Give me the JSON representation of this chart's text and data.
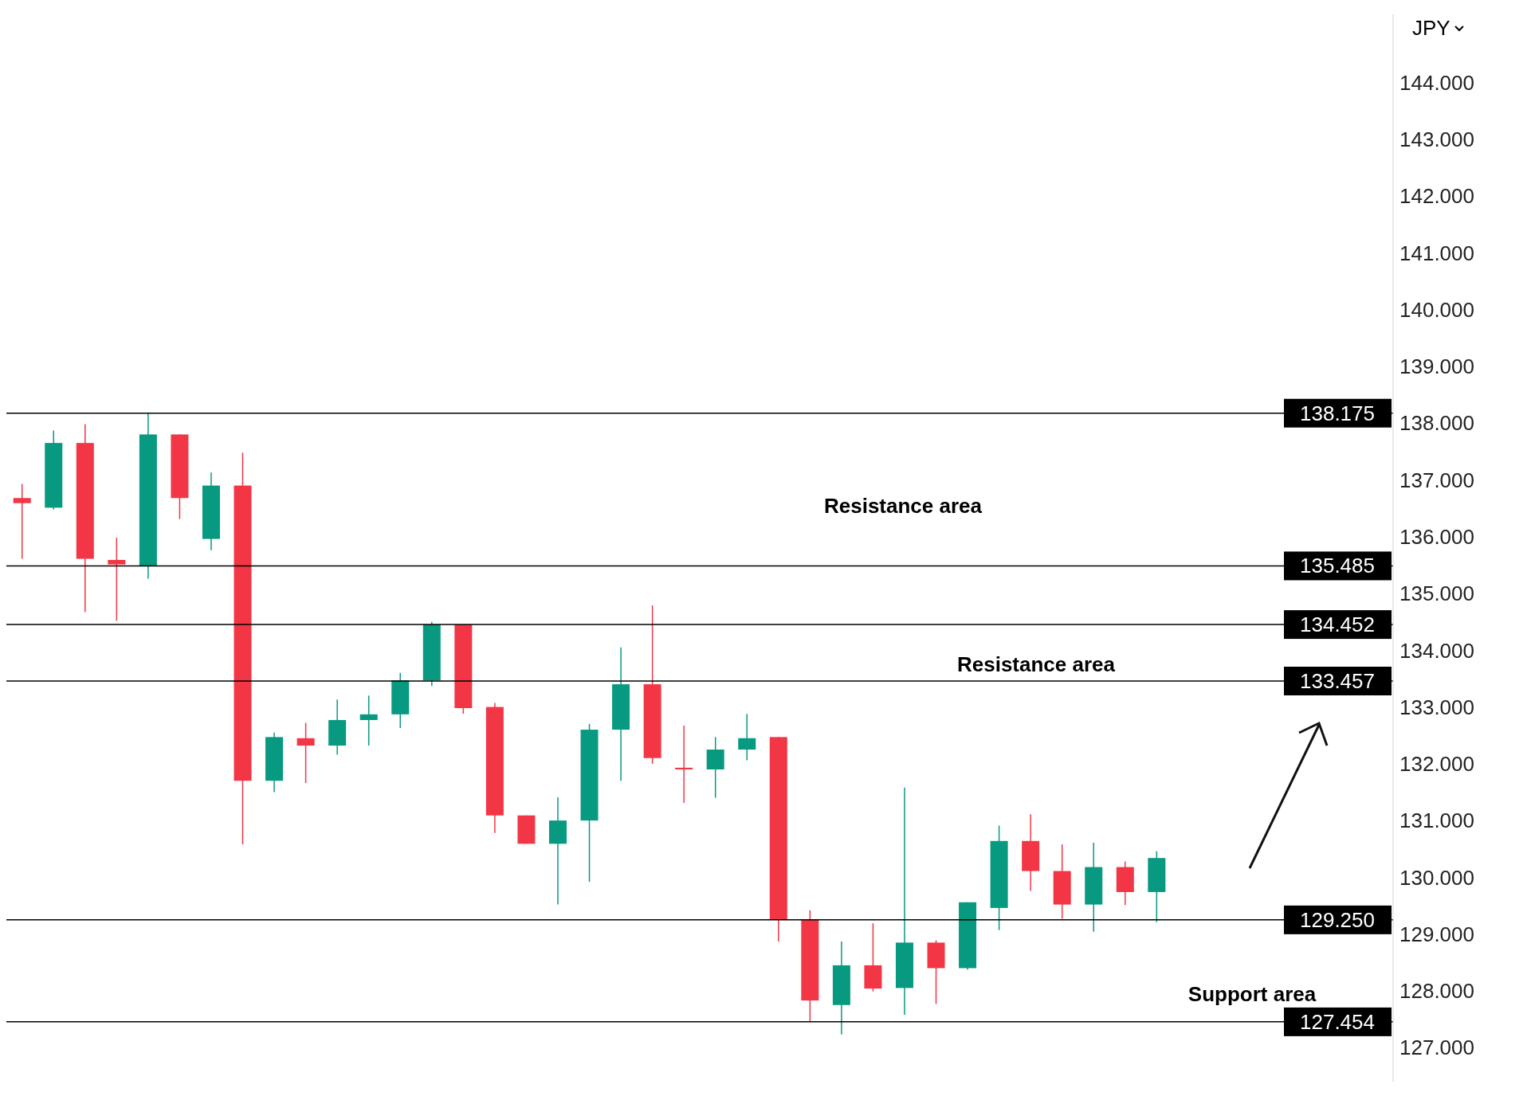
{
  "chart_data": {
    "type": "candlestick",
    "ylabel": "JPY",
    "categories": [
      null,
      null,
      null,
      null,
      null,
      null,
      null,
      null,
      null,
      null,
      null,
      null,
      null,
      null,
      null,
      null,
      null,
      null,
      null,
      null,
      null,
      null,
      null,
      null,
      null,
      null,
      null,
      null,
      null,
      null,
      null,
      null,
      null,
      null,
      null,
      null,
      null,
      null,
      null,
      null,
      null,
      null,
      null,
      null
    ],
    "ohlc": [
      [
        136.68,
        136.93,
        135.61,
        136.59
      ],
      [
        136.51,
        137.87,
        136.48,
        137.65
      ],
      [
        137.65,
        137.98,
        134.67,
        135.61
      ],
      [
        135.59,
        135.98,
        134.52,
        135.51
      ],
      [
        135.49,
        138.175,
        135.26,
        137.8
      ],
      [
        137.8,
        137.8,
        136.31,
        136.68
      ],
      [
        135.96,
        137.13,
        135.76,
        136.9
      ],
      [
        136.9,
        137.48,
        130.58,
        131.7
      ],
      [
        131.7,
        132.55,
        131.5,
        132.47
      ],
      [
        132.45,
        132.72,
        131.66,
        132.32
      ],
      [
        132.32,
        133.13,
        132.16,
        132.77
      ],
      [
        132.77,
        133.2,
        132.32,
        132.87
      ],
      [
        132.87,
        133.6,
        132.63,
        133.47
      ],
      [
        133.47,
        134.5,
        133.37,
        134.452
      ],
      [
        134.45,
        134.45,
        132.88,
        132.98
      ],
      [
        133.0,
        133.07,
        130.78,
        131.09
      ],
      [
        131.09,
        131.09,
        130.59,
        130.59
      ],
      [
        130.59,
        131.41,
        129.52,
        131.0
      ],
      [
        131.0,
        132.7,
        129.92,
        132.6
      ],
      [
        132.6,
        134.05,
        131.7,
        133.4
      ],
      [
        133.4,
        134.79,
        132.0,
        132.1
      ],
      [
        131.93,
        132.67,
        131.31,
        131.9
      ],
      [
        131.9,
        132.47,
        131.4,
        132.25
      ],
      [
        132.25,
        132.88,
        132.06,
        132.45
      ],
      [
        132.47,
        132.47,
        128.87,
        129.26
      ],
      [
        129.26,
        129.42,
        127.454,
        127.83
      ],
      [
        127.75,
        128.87,
        127.23,
        128.45
      ],
      [
        128.45,
        129.19,
        127.99,
        128.04
      ],
      [
        128.05,
        131.58,
        127.58,
        128.85
      ],
      [
        128.85,
        128.89,
        127.77,
        128.4
      ],
      [
        128.4,
        129.56,
        128.37,
        129.56
      ],
      [
        129.46,
        130.91,
        129.07,
        130.64
      ],
      [
        130.64,
        131.11,
        129.76,
        130.11
      ],
      [
        130.11,
        130.58,
        129.27,
        129.52
      ],
      [
        129.52,
        130.61,
        129.04,
        130.18
      ],
      [
        130.18,
        130.28,
        129.51,
        129.74
      ],
      [
        129.74,
        130.46,
        129.21,
        130.34
      ],
      null,
      null,
      null,
      null,
      null,
      null,
      null
    ],
    "colors": [
      "#f23645",
      "#089981",
      "#f23645",
      "#f23645",
      "#089981",
      "#f23645",
      "#089981",
      "#f23645",
      "#089981",
      "#f23645",
      "#089981",
      "#089981",
      "#089981",
      "#089981",
      "#f23645",
      "#f23645",
      "#f23645",
      "#089981",
      "#089981",
      "#089981",
      "#f23645",
      "#f23645",
      "#089981",
      "#089981",
      "#f23645",
      "#f23645",
      "#089981",
      "#f23645",
      "#089981",
      "#f23645",
      "#089981",
      "#089981",
      "#f23645",
      "#f23645",
      "#089981",
      "#f23645",
      "#089981",
      null,
      null,
      null,
      null,
      null,
      null,
      null
    ],
    "ylim": [
      126.4,
      145.2
    ],
    "yticks": [
      {
        "value": 127,
        "label": "127.000"
      },
      {
        "value": 128,
        "label": "128.000"
      },
      {
        "value": 129,
        "label": "129.000"
      },
      {
        "value": 130,
        "label": "130.000"
      },
      {
        "value": 131,
        "label": "131.000"
      },
      {
        "value": 132,
        "label": "132.000"
      },
      {
        "value": 133,
        "label": "133.000"
      },
      {
        "value": 134,
        "label": "134.000"
      },
      {
        "value": 135,
        "label": "135.000"
      },
      {
        "value": 136,
        "label": "136.000"
      },
      {
        "value": 137,
        "label": "137.000"
      },
      {
        "value": 138,
        "label": "138.000"
      },
      {
        "value": 139,
        "label": "139.000"
      },
      {
        "value": 140,
        "label": "140.000"
      },
      {
        "value": 141,
        "label": "141.000"
      },
      {
        "value": 142,
        "label": "142.000"
      },
      {
        "value": 143,
        "label": "143.000"
      },
      {
        "value": 144,
        "label": "144.000"
      }
    ],
    "ref_lines": [
      {
        "axis": "y",
        "value": 138.175,
        "label": "138.175",
        "color": "#000000"
      },
      {
        "axis": "y",
        "value": 135.485,
        "label": "135.485",
        "color": "#000000"
      },
      {
        "axis": "y",
        "value": 134.452,
        "label": "134.452",
        "color": "#000000"
      },
      {
        "axis": "y",
        "value": 133.457,
        "label": "133.457",
        "color": "#000000"
      },
      {
        "axis": "y",
        "value": 129.25,
        "label": "129.250",
        "color": "#000000"
      },
      {
        "axis": "y",
        "value": 127.454,
        "label": "127.454",
        "color": "#000000"
      }
    ],
    "annotations": [
      "Resistance area",
      "Resistance area",
      "Support area"
    ],
    "tick_labels": "y"
  }
}
